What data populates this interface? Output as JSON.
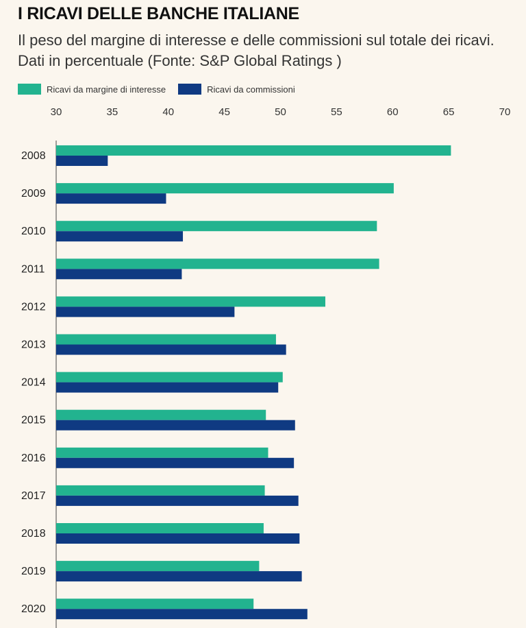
{
  "header": {
    "title": "I RICAVI DELLE BANCHE ITALIANE",
    "subtitle": "Il peso del margine di interesse e delle commissioni sul totale dei ricavi. Dati in percentuale (Fonte: S&P Global Ratings )"
  },
  "colors": {
    "interest": "#22b38f",
    "commissions": "#0f3a82",
    "background": "#fbf6ee"
  },
  "chart_data": {
    "type": "bar",
    "orientation": "horizontal",
    "title": "I RICAVI DELLE BANCHE ITALIANE",
    "subtitle": "Il peso del margine di interesse e delle commissioni sul totale dei ricavi. Dati in percentuale (Fonte: S&P Global Ratings )",
    "xlabel": "",
    "ylabel": "",
    "xlim": [
      30,
      70
    ],
    "ticks": [
      30,
      35,
      40,
      45,
      50,
      55,
      60,
      65,
      70
    ],
    "tick_labels": [
      "30",
      "35",
      "40",
      "45",
      "50",
      "55",
      "60",
      "65",
      "70"
    ],
    "legend_position": "top-left",
    "grid": false,
    "categories": [
      "2008",
      "2009",
      "2010",
      "2011",
      "2012",
      "2013",
      "2014",
      "2015",
      "2016",
      "2017",
      "2018",
      "2019",
      "2020"
    ],
    "series": [
      {
        "name": "Ricavi da margine di interesse",
        "values": [
          65.2,
          60.1,
          58.6,
          58.8,
          54.0,
          49.6,
          50.2,
          48.7,
          48.9,
          48.6,
          48.5,
          48.1,
          47.6
        ]
      },
      {
        "name": "Ricavi da commissioni",
        "values": [
          34.6,
          39.8,
          41.3,
          41.2,
          45.9,
          50.5,
          49.8,
          51.3,
          51.2,
          51.6,
          51.7,
          51.9,
          52.4
        ]
      }
    ]
  }
}
